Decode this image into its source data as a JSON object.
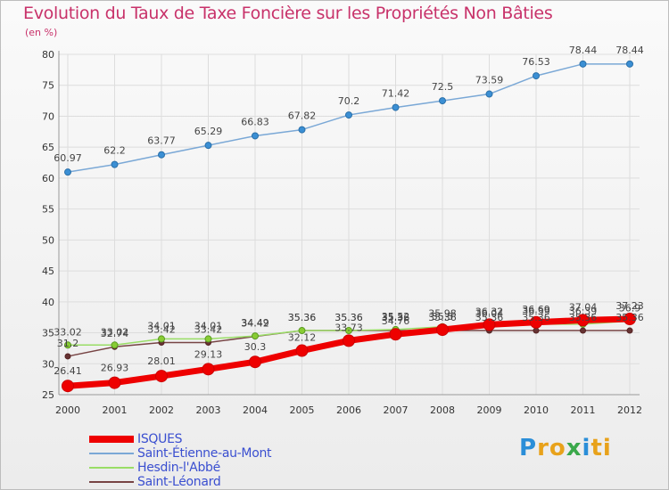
{
  "title": "Evolution du Taux de Taxe Foncière sur les Propriétés Non Bâties",
  "unit": "(en %)",
  "brand": {
    "letters": [
      "P",
      "r",
      "o",
      "x",
      "i",
      "t",
      "i"
    ],
    "colors": [
      "#2a8ed8",
      "#e8a21b",
      "#e8a21b",
      "#3aa84a",
      "#2a8ed8",
      "#e8a21b",
      "#e8a21b"
    ]
  },
  "colors": {
    "isques": "#ee0000",
    "saint_etienne": "#7aa8d6",
    "hesdin": "#99dd66",
    "saint_leonard": "#774444",
    "axis": "#999999",
    "grid": "#dddddd",
    "title": "#c8326a",
    "legend_text": "#3a4fd0"
  },
  "chart_data": {
    "type": "line",
    "title": "Evolution du Taux de Taxe Foncière sur les Propriétés Non Bâties",
    "ylabel": "(en %)",
    "xlabel": "",
    "ylim": [
      25,
      80
    ],
    "yticks": [
      25,
      30,
      35,
      40,
      45,
      50,
      55,
      60,
      65,
      70,
      75,
      80
    ],
    "x": [
      "2000",
      "2001",
      "2002",
      "2003",
      "2004",
      "2005",
      "2006",
      "2007",
      "2008",
      "2009",
      "2010",
      "2011",
      "2012"
    ],
    "series": [
      {
        "name": "ISQUES",
        "key": "isques",
        "values": [
          26.41,
          26.93,
          28.01,
          29.13,
          30.3,
          32.12,
          33.73,
          34.76,
          35.5,
          36.32,
          36.69,
          37.04,
          37.23
        ],
        "labels": [
          "26.41",
          "26.93",
          "28.01",
          "29.13",
          "30.3",
          "32.12",
          "33.73",
          "34.76",
          "35.5",
          "36.32",
          "36.69",
          "37.04",
          "37.23"
        ]
      },
      {
        "name": "Saint-Étienne-au-Mont",
        "key": "saint_etienne",
        "values": [
          60.97,
          62.2,
          63.77,
          65.29,
          66.83,
          67.82,
          70.2,
          71.42,
          72.5,
          73.59,
          76.53,
          78.44,
          78.44
        ],
        "labels": [
          "60.97",
          "62.2",
          "63.77",
          "65.29",
          "66.83",
          "67.82",
          "70.2",
          "71.42",
          "72.5",
          "73.59",
          "76.53",
          "78.44",
          "78.44"
        ]
      },
      {
        "name": "Hesdin-l'Abbé",
        "key": "hesdin",
        "values": [
          33.02,
          33.02,
          34.01,
          34.01,
          34.49,
          35.36,
          35.36,
          35.52,
          35.98,
          36.04,
          36.39,
          36.39,
          36.9
        ],
        "labels": [
          "33.02",
          "33.02",
          "34.01",
          "34.01",
          "34.49",
          "35.36",
          "35.36",
          "35.52",
          "35.98",
          "36.04",
          "36.39",
          "36.39",
          "36.9"
        ]
      },
      {
        "name": "Saint-Léonard",
        "key": "saint_leonard",
        "values": [
          31.2,
          32.74,
          33.42,
          33.42,
          34.42,
          35.36,
          35.36,
          35.36,
          35.36,
          35.36,
          35.36,
          35.36,
          35.36
        ],
        "labels": [
          "31.2",
          "32.74",
          "33.42",
          "33.42",
          "34.42",
          "35.36",
          "35.36",
          "35.36",
          "35.36",
          "35.36",
          "35.36",
          "35.36",
          "35.36"
        ]
      }
    ]
  },
  "legend": [
    {
      "label": "ISQUES",
      "key": "isques"
    },
    {
      "label": "Saint-Étienne-au-Mont",
      "key": "saint_etienne"
    },
    {
      "label": "Hesdin-l'Abbé",
      "key": "hesdin"
    },
    {
      "label": "Saint-Léonard",
      "key": "saint_leonard"
    }
  ]
}
